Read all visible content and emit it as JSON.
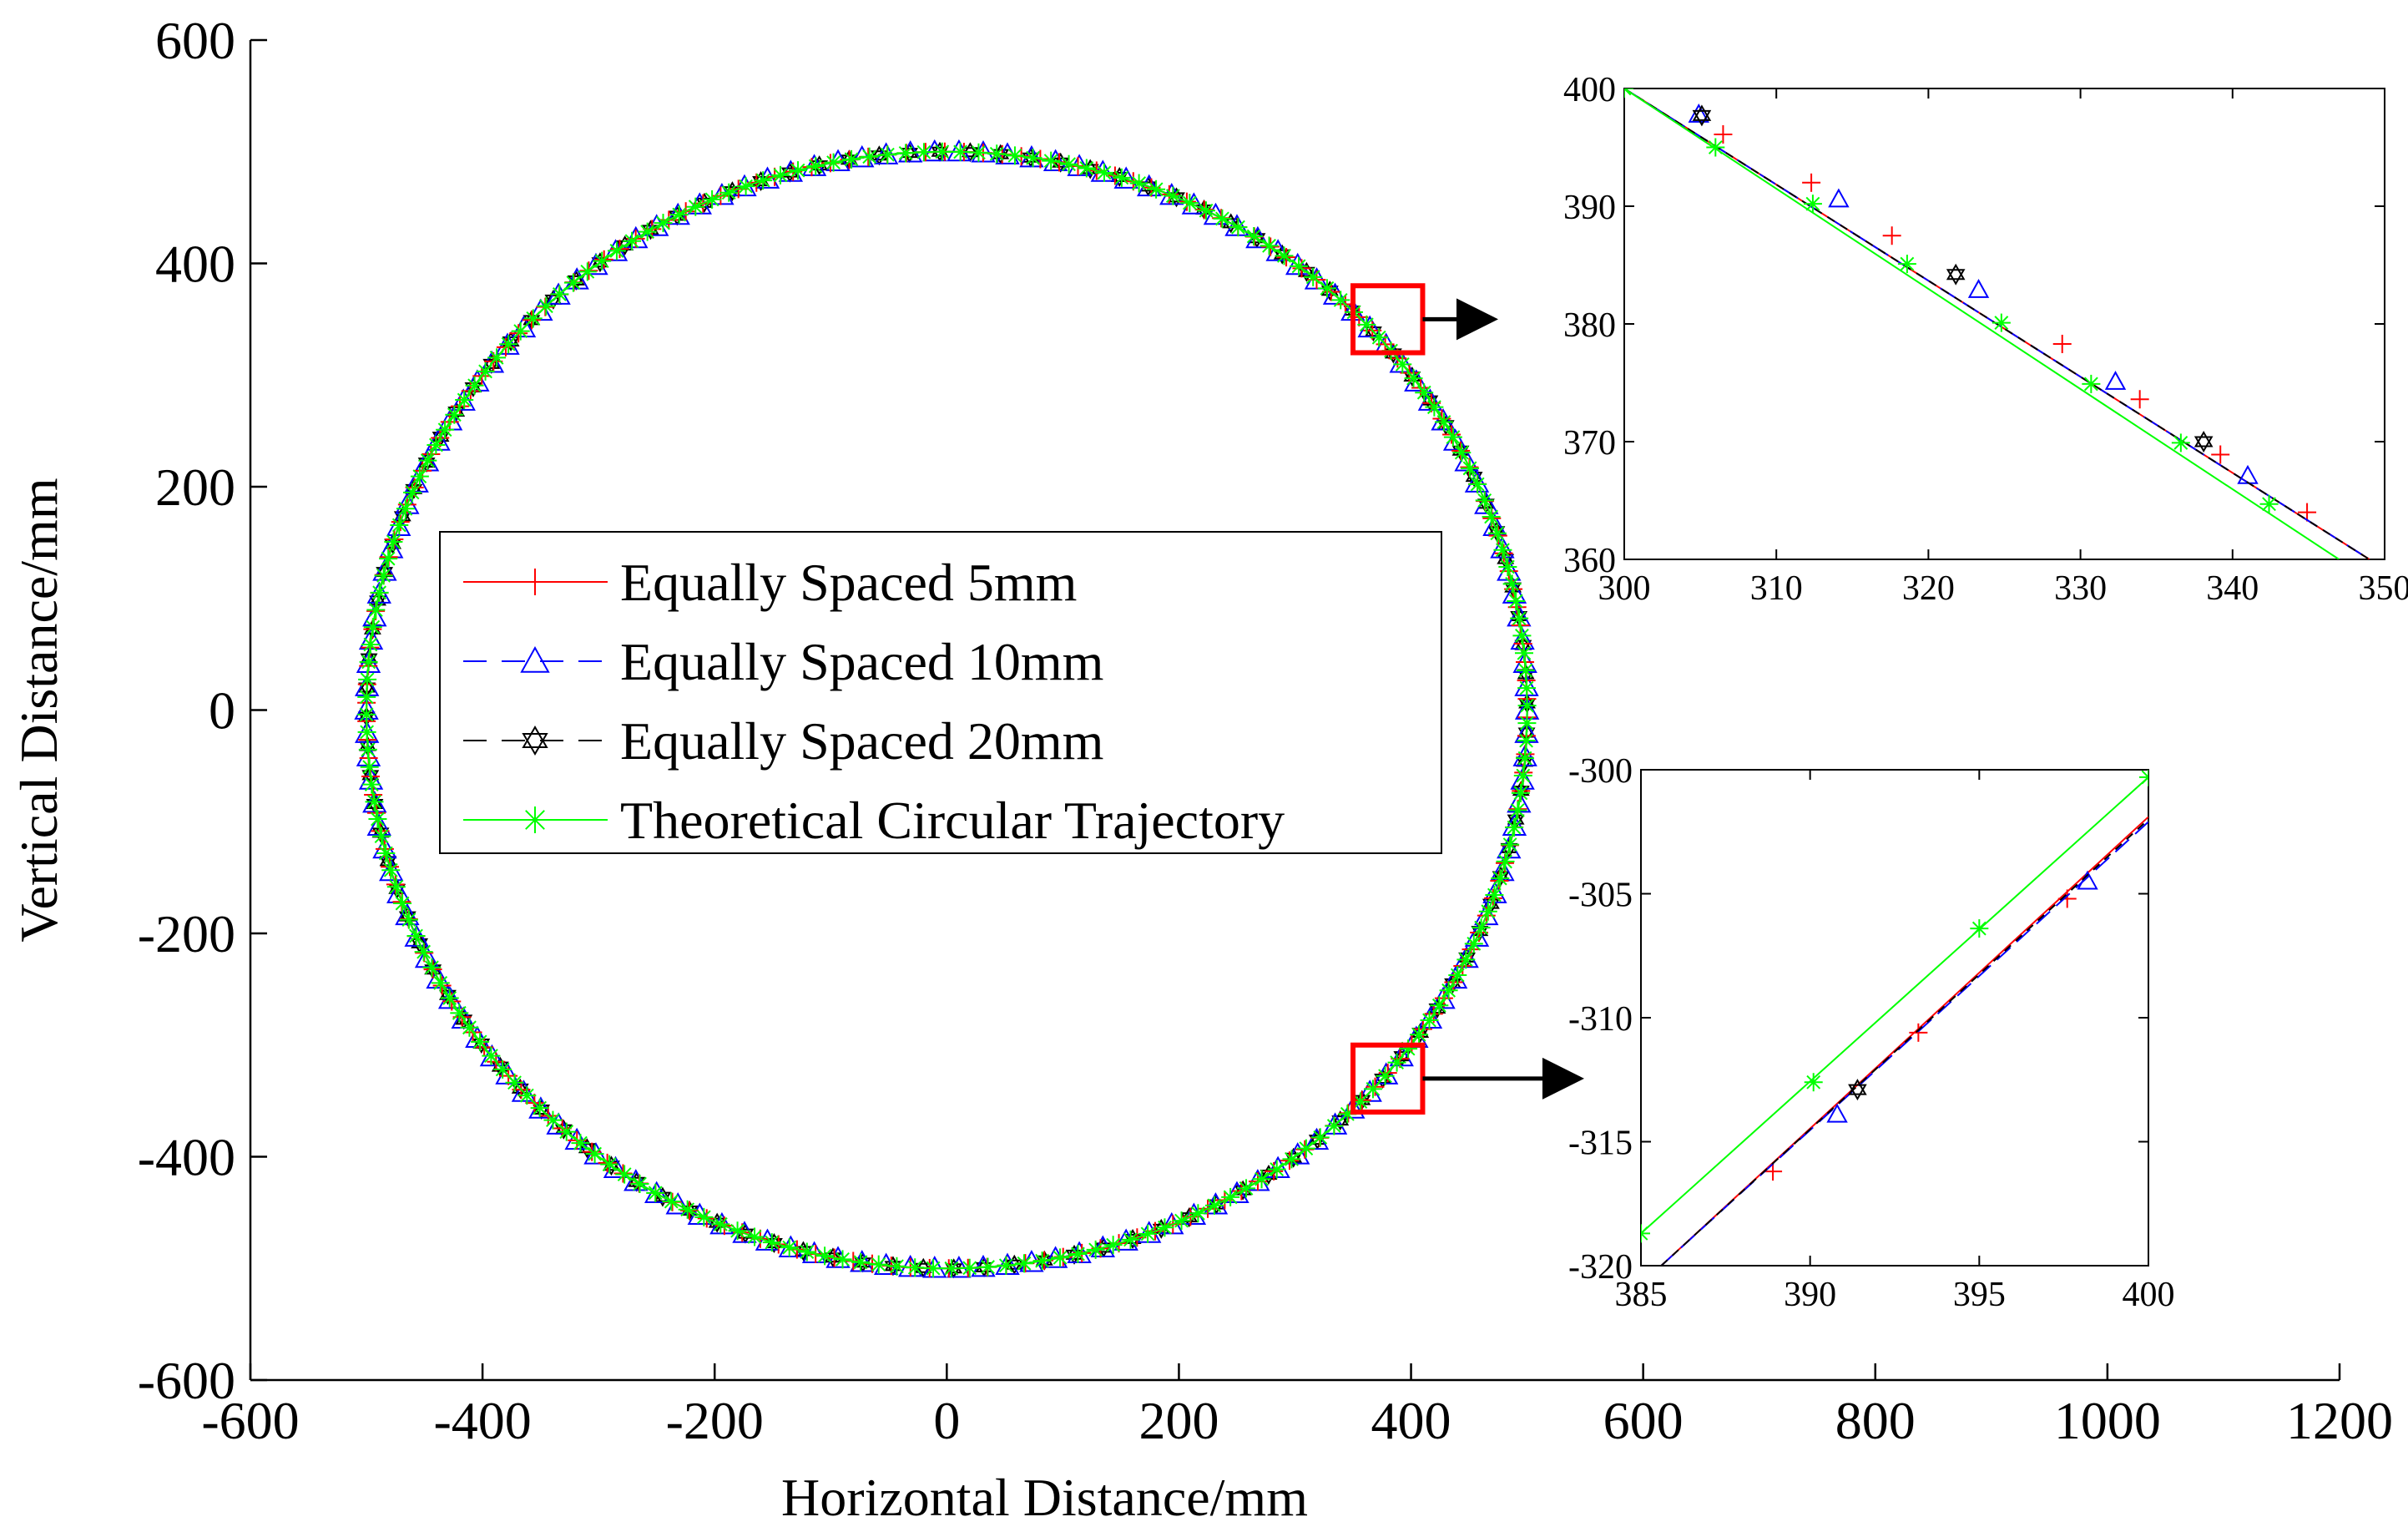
{
  "chart_data": [
    {
      "id": "main",
      "type": "line",
      "title": "",
      "xlabel": "Horizontal Distance/mm",
      "ylabel": "Vertical Distance/mm",
      "xlim": [
        -600,
        1200
      ],
      "ylim": [
        -600,
        600
      ],
      "xticks": [
        -600,
        -400,
        -200,
        0,
        200,
        400,
        600,
        800,
        1000,
        1200
      ],
      "yticks": [
        -600,
        -400,
        -200,
        0,
        200,
        400,
        600
      ],
      "xtick_labels": [
        "-600",
        "-400",
        "-200",
        "0",
        "200",
        "400",
        "600",
        "800",
        "1000",
        "1200"
      ],
      "ytick_labels": [
        "-600",
        "-400",
        "-200",
        "0",
        "200",
        "400",
        "600"
      ],
      "grid": false,
      "legend": {
        "placement": "center-left",
        "entries": [
          {
            "label": "Equally Spaced 5mm",
            "color": "#ff0000",
            "marker": "plus",
            "dash": "solid"
          },
          {
            "label": "Equally Spaced 10mm",
            "color": "#0000ff",
            "marker": "triangle",
            "dash": "dashed"
          },
          {
            "label": "Equally Spaced 20mm",
            "color": "#000000",
            "marker": "hexagram",
            "dash": "dashed"
          },
          {
            "label": "Theoretical Circular Trajectory",
            "color": "#00ff00",
            "marker": "asterisk",
            "dash": "solid"
          }
        ]
      },
      "series": [
        {
          "name": "Equally Spaced 5mm",
          "shape": "circle",
          "center": [
            0,
            0
          ],
          "radius": 500,
          "color": "#ff0000"
        },
        {
          "name": "Equally Spaced 10mm",
          "shape": "circle",
          "center": [
            0,
            0
          ],
          "radius": 500,
          "color": "#0000ff"
        },
        {
          "name": "Equally Spaced 20mm",
          "shape": "circle",
          "center": [
            0,
            0
          ],
          "radius": 500,
          "color": "#000000"
        },
        {
          "name": "Theoretical Circular Trajectory",
          "shape": "circle",
          "center": [
            0,
            0
          ],
          "radius": 500,
          "color": "#00ff00"
        }
      ],
      "zoom_boxes": [
        {
          "x": [
            350,
            410
          ],
          "y": [
            320,
            380
          ],
          "color": "#ff0000",
          "target": "inset-top"
        },
        {
          "x": [
            350,
            410
          ],
          "y": [
            -360,
            -300
          ],
          "color": "#ff0000",
          "target": "inset-bottom"
        }
      ]
    },
    {
      "id": "inset-top",
      "type": "line",
      "xlim": [
        300,
        350
      ],
      "ylim": [
        360,
        400
      ],
      "xticks": [
        300,
        310,
        320,
        330,
        340,
        350
      ],
      "yticks": [
        360,
        370,
        380,
        390,
        400
      ],
      "xtick_labels": [
        "300",
        "310",
        "320",
        "330",
        "340",
        "350"
      ],
      "ytick_labels": [
        "360",
        "370",
        "380",
        "390",
        "400"
      ],
      "series": [
        {
          "name": "Equally Spaced 5mm",
          "color": "#ff0000",
          "marker": "plus",
          "x": [
            300,
            349
          ],
          "y": [
            400,
            360
          ],
          "marker_x": [
            306.5,
            312.3,
            317.6,
            328.8,
            333.9,
            339.2,
            344.9
          ],
          "marker_y": [
            396.1,
            392.0,
            387.5,
            378.3,
            373.6,
            368.9,
            364.0
          ]
        },
        {
          "name": "Equally Spaced 10mm",
          "color": "#0000ff",
          "marker": "triangle",
          "x": [
            300,
            349
          ],
          "y": [
            400,
            360
          ],
          "marker_x": [
            304.9,
            314.1,
            323.3,
            332.3,
            341.0
          ],
          "marker_y": [
            397.8,
            390.6,
            382.9,
            375.1,
            367.1
          ]
        },
        {
          "name": "Equally Spaced 20mm",
          "color": "#000000",
          "marker": "hexagram",
          "x": [
            300,
            349
          ],
          "y": [
            400,
            360
          ],
          "marker_x": [
            305.1,
            321.8,
            338.1
          ],
          "marker_y": [
            397.7,
            384.2,
            370.0
          ]
        },
        {
          "name": "Theoretical Circular Trajectory",
          "color": "#00ff00",
          "marker": "asterisk",
          "x": [
            300,
            347
          ],
          "y": [
            400,
            360
          ],
          "marker_x": [
            300.0,
            306.0,
            312.4,
            318.6,
            324.8,
            330.7,
            336.6,
            342.4
          ],
          "marker_y": [
            400.0,
            395.0,
            390.2,
            385.1,
            380.1,
            374.9,
            369.9,
            364.7
          ]
        }
      ]
    },
    {
      "id": "inset-bottom",
      "type": "line",
      "xlim": [
        385,
        400
      ],
      "ylim": [
        -320,
        -300
      ],
      "xticks": [
        385,
        390,
        395,
        400
      ],
      "yticks": [
        -320,
        -315,
        -310,
        -305,
        -300
      ],
      "xtick_labels": [
        "385",
        "390",
        "395",
        "400"
      ],
      "ytick_labels": [
        "-320",
        "-315",
        "-310",
        "-305",
        "-300"
      ],
      "series": [
        {
          "name": "Equally Spaced 5mm",
          "color": "#ff0000",
          "marker": "plus",
          "x": [
            385.6,
            400
          ],
          "y": [
            -320,
            -301.9
          ],
          "marker_x": [
            388.9,
            393.2,
            397.6
          ],
          "marker_y": [
            -316.2,
            -310.6,
            -305.2
          ]
        },
        {
          "name": "Equally Spaced 10mm",
          "color": "#0000ff",
          "marker": "triangle",
          "x": [
            385.6,
            400
          ],
          "y": [
            -320,
            -302.1
          ],
          "marker_x": [
            390.8,
            398.2
          ],
          "marker_y": [
            -313.9,
            -304.5
          ]
        },
        {
          "name": "Equally Spaced 20mm",
          "color": "#000000",
          "marker": "hexagram",
          "x": [
            385.6,
            400
          ],
          "y": [
            -320,
            -302.0
          ],
          "marker_x": [
            391.4
          ],
          "marker_y": [
            -312.9
          ]
        },
        {
          "name": "Theoretical Circular Trajectory",
          "color": "#00ff00",
          "marker": "asterisk",
          "x": [
            385,
            400
          ],
          "y": [
            -318.7,
            -300.3
          ],
          "marker_x": [
            385.0,
            390.1,
            395.0,
            400.0
          ],
          "marker_y": [
            -318.7,
            -312.6,
            -306.4,
            -300.3
          ]
        }
      ]
    }
  ]
}
